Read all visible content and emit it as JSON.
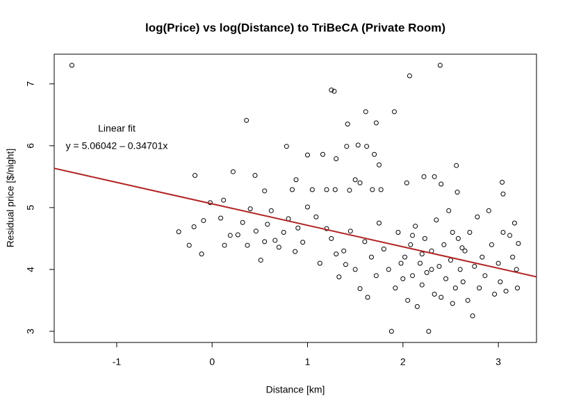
{
  "chart_data": {
    "type": "scatter",
    "title": "log(Price) vs log(Distance) to TriBeCA (Private Room)",
    "x_label": "Distance [km]",
    "y_label": "Residual price [$/night]",
    "annotations": [
      "Linear fit",
      "y = 5.06042 – 0.34701x"
    ],
    "fit": {
      "intercept": 5.06042,
      "slope": -0.34701,
      "color": "#b22222"
    },
    "point_color": "#000000",
    "xlim": [
      -1.655,
      3.4
    ],
    "ylim": [
      2.82,
      7.48
    ],
    "xticks": [
      -1,
      0,
      1,
      2,
      3
    ],
    "yticks": [
      3,
      4,
      5,
      6,
      7
    ],
    "x": [
      -1.47,
      2.39,
      2.07,
      1.25,
      1.28,
      0.36,
      1.42,
      1.61,
      1.91,
      1.72,
      0.78,
      1.0,
      1.16,
      1.41,
      1.53,
      1.62,
      1.7,
      1.75,
      1.3,
      -0.18,
      0.22,
      0.45,
      0.55,
      0.88,
      0.84,
      1.05,
      1.2,
      1.29,
      1.44,
      1.5,
      1.55,
      1.68,
      1.77,
      2.04,
      2.22,
      2.33,
      2.4,
      2.56,
      2.57,
      3.04,
      3.05,
      -0.35,
      -0.24,
      -0.19,
      -0.11,
      -0.09,
      -0.02,
      0.09,
      0.12,
      0.13,
      0.19,
      0.27,
      0.32,
      0.37,
      0.4,
      0.46,
      0.51,
      0.55,
      0.58,
      0.62,
      0.66,
      0.7,
      0.75,
      0.8,
      0.87,
      0.9,
      0.95,
      1.0,
      1.09,
      1.13,
      1.2,
      1.25,
      1.3,
      1.33,
      1.38,
      1.4,
      1.45,
      1.5,
      1.55,
      1.6,
      1.63,
      1.67,
      1.72,
      1.75,
      1.8,
      1.85,
      1.88,
      1.92,
      1.95,
      2.0,
      2.02,
      2.05,
      2.08,
      2.1,
      2.13,
      2.15,
      2.18,
      2.2,
      2.23,
      2.25,
      2.27,
      2.3,
      2.33,
      2.35,
      2.38,
      2.4,
      2.43,
      2.45,
      2.48,
      2.5,
      2.52,
      2.55,
      2.58,
      2.6,
      2.63,
      2.65,
      2.68,
      2.7,
      2.73,
      2.75,
      2.78,
      2.8,
      2.83,
      2.86,
      2.9,
      2.93,
      2.96,
      3.0,
      3.02,
      3.05,
      3.08,
      3.12,
      3.15,
      3.17,
      3.19,
      3.2,
      3.21,
      2.52,
      2.2,
      1.98,
      2.3,
      2.1,
      2.62
    ],
    "values": [
      7.3,
      7.3,
      7.13,
      6.9,
      6.88,
      6.41,
      6.35,
      6.55,
      6.55,
      6.37,
      5.99,
      5.85,
      5.86,
      5.99,
      6.01,
      5.99,
      5.86,
      5.69,
      5.79,
      5.52,
      5.58,
      5.52,
      5.27,
      5.45,
      5.29,
      5.29,
      5.29,
      5.29,
      5.28,
      5.45,
      5.4,
      5.29,
      5.29,
      5.4,
      5.5,
      5.5,
      5.38,
      5.68,
      5.25,
      5.41,
      5.22,
      4.61,
      4.39,
      4.69,
      4.25,
      4.79,
      5.08,
      4.83,
      5.12,
      4.39,
      4.55,
      4.56,
      4.76,
      4.39,
      4.98,
      4.62,
      4.15,
      4.45,
      4.73,
      4.95,
      4.47,
      4.36,
      4.6,
      4.82,
      4.29,
      4.67,
      4.44,
      5.01,
      4.85,
      4.1,
      4.66,
      4.5,
      4.25,
      3.88,
      4.3,
      4.08,
      4.62,
      4.0,
      3.69,
      4.45,
      3.55,
      4.2,
      3.9,
      4.75,
      4.33,
      4.0,
      3.0,
      3.7,
      4.6,
      3.85,
      4.2,
      3.5,
      4.4,
      3.9,
      4.7,
      3.4,
      4.1,
      3.75,
      4.5,
      3.95,
      3.0,
      4.3,
      3.6,
      4.8,
      4.05,
      3.55,
      4.4,
      3.85,
      4.95,
      4.15,
      3.45,
      3.7,
      4.5,
      4.0,
      3.8,
      4.3,
      3.5,
      4.6,
      3.25,
      4.05,
      4.85,
      3.7,
      4.2,
      3.9,
      4.95,
      4.4,
      3.6,
      4.1,
      3.8,
      4.6,
      3.65,
      4.55,
      4.2,
      4.75,
      4.0,
      3.7,
      4.42,
      4.6,
      4.25,
      4.1,
      4.0,
      4.55,
      4.35
    ]
  }
}
